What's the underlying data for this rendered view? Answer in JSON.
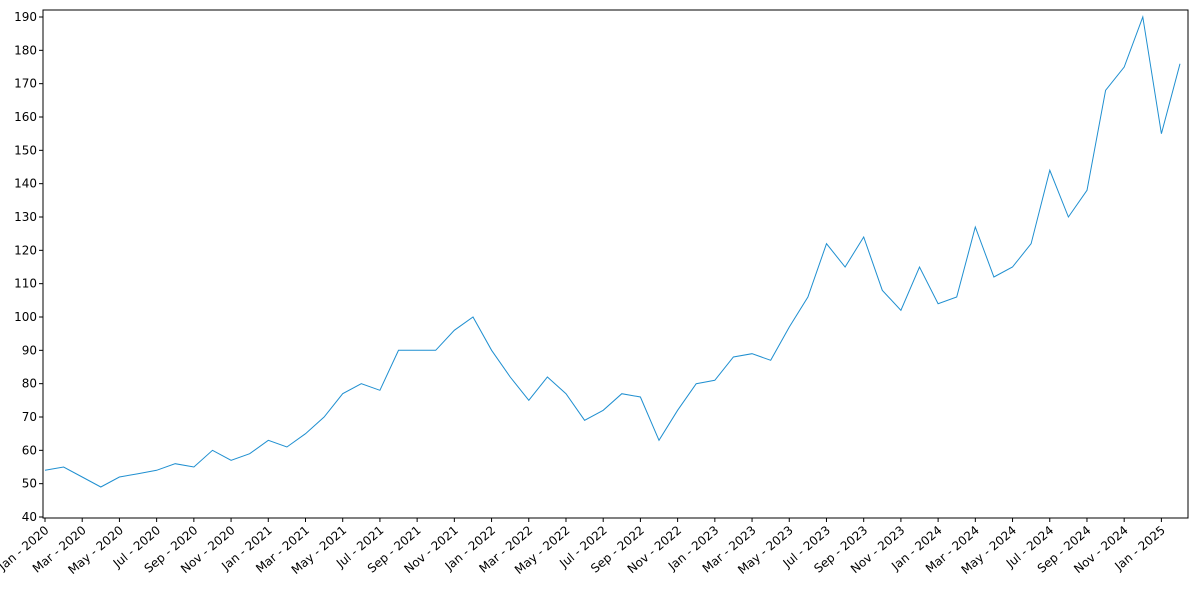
{
  "chart_data": {
    "type": "line",
    "x": [
      "2020-01",
      "2020-02",
      "2020-03",
      "2020-04",
      "2020-05",
      "2020-06",
      "2020-07",
      "2020-08",
      "2020-09",
      "2020-10",
      "2020-11",
      "2020-12",
      "2021-01",
      "2021-02",
      "2021-03",
      "2021-04",
      "2021-05",
      "2021-06",
      "2021-07",
      "2021-08",
      "2021-09",
      "2021-10",
      "2021-11",
      "2021-12",
      "2022-01",
      "2022-02",
      "2022-03",
      "2022-04",
      "2022-05",
      "2022-06",
      "2022-07",
      "2022-08",
      "2022-09",
      "2022-10",
      "2022-11",
      "2022-12",
      "2023-01",
      "2023-02",
      "2023-03",
      "2023-04",
      "2023-05",
      "2023-06",
      "2023-07",
      "2023-08",
      "2023-09",
      "2023-10",
      "2023-11",
      "2023-12",
      "2024-01",
      "2024-02",
      "2024-03",
      "2024-04",
      "2024-05",
      "2024-06",
      "2024-07",
      "2024-08",
      "2024-09",
      "2024-10",
      "2024-11",
      "2024-12",
      "2025-01",
      "2025-02"
    ],
    "series": [
      {
        "color": "#1f8fd0",
        "values": [
          54,
          55,
          52,
          49,
          52,
          53,
          54,
          56,
          55,
          60,
          57,
          59,
          63,
          61,
          65,
          70,
          77,
          80,
          78,
          90,
          90,
          90,
          96,
          100,
          90,
          82,
          75,
          82,
          77,
          69,
          72,
          77,
          76,
          63,
          72,
          80,
          81,
          88,
          89,
          87,
          97,
          106,
          122,
          115,
          124,
          108,
          102,
          115,
          104,
          106,
          127,
          112,
          115,
          122,
          144,
          130,
          138,
          168,
          175,
          190,
          155,
          176
        ]
      }
    ],
    "xlim": [
      "2020-01",
      "2025-02"
    ],
    "xticks": [
      {
        "value": "2020-01",
        "label": "Jan - 2020"
      },
      {
        "value": "2020-03",
        "label": "Mar - 2020"
      },
      {
        "value": "2020-05",
        "label": "May - 2020"
      },
      {
        "value": "2020-07",
        "label": "Jul - 2020"
      },
      {
        "value": "2020-09",
        "label": "Sep - 2020"
      },
      {
        "value": "2020-11",
        "label": "Nov - 2020"
      },
      {
        "value": "2021-01",
        "label": "Jan - 2021"
      },
      {
        "value": "2021-03",
        "label": "Mar - 2021"
      },
      {
        "value": "2021-05",
        "label": "May - 2021"
      },
      {
        "value": "2021-07",
        "label": "Jul - 2021"
      },
      {
        "value": "2021-09",
        "label": "Sep - 2021"
      },
      {
        "value": "2021-11",
        "label": "Nov - 2021"
      },
      {
        "value": "2022-01",
        "label": "Jan - 2022"
      },
      {
        "value": "2022-03",
        "label": "Mar - 2022"
      },
      {
        "value": "2022-05",
        "label": "May - 2022"
      },
      {
        "value": "2022-07",
        "label": "Jul - 2022"
      },
      {
        "value": "2022-09",
        "label": "Sep - 2022"
      },
      {
        "value": "2022-11",
        "label": "Nov - 2022"
      },
      {
        "value": "2023-01",
        "label": "Jan - 2023"
      },
      {
        "value": "2023-03",
        "label": "Mar - 2023"
      },
      {
        "value": "2023-05",
        "label": "May - 2023"
      },
      {
        "value": "2023-07",
        "label": "Jul - 2023"
      },
      {
        "value": "2023-09",
        "label": "Sep - 2023"
      },
      {
        "value": "2023-11",
        "label": "Nov - 2023"
      },
      {
        "value": "2024-01",
        "label": "Jan - 2024"
      },
      {
        "value": "2024-03",
        "label": "Mar - 2024"
      },
      {
        "value": "2024-05",
        "label": "May - 2024"
      },
      {
        "value": "2024-07",
        "label": "Jul - 2024"
      },
      {
        "value": "2024-09",
        "label": "Sep - 2024"
      },
      {
        "value": "2024-11",
        "label": "Nov - 2024"
      },
      {
        "value": "2025-01",
        "label": "Jan - 2025"
      }
    ],
    "ylim": [
      39.7,
      192.1
    ],
    "yticks": [
      40,
      50,
      60,
      70,
      80,
      90,
      100,
      110,
      120,
      130,
      140,
      150,
      160,
      170,
      180,
      190
    ]
  }
}
